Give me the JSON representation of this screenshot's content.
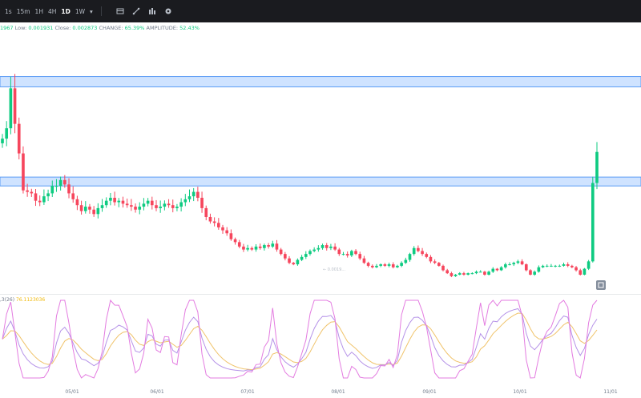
{
  "toolbar": {
    "timeframes": [
      "1s",
      "15m",
      "1H",
      "4H",
      "1D",
      "1W"
    ],
    "active_timeframe": "1D",
    "dropdown_icon": "chevron-down-icon",
    "icons": [
      "candlestick-icon",
      "drawing-icon",
      "indicators-icon",
      "settings-icon"
    ]
  },
  "ohlc": {
    "high_fragment": "1967",
    "low_label": "Low:",
    "low": "0.001931",
    "close_label": "Close:",
    "close": "0.002873",
    "change_label": "CHANGE:",
    "change": "65.39%",
    "amplitude_label": "AMPLITUDE:",
    "amplitude": "52.43%"
  },
  "indicator": {
    "label_fragment": ",3(26)",
    "value": "76.1123036"
  },
  "x_axis": [
    "05/01",
    "06/01",
    "07/01",
    "08/01",
    "09/01",
    "10/01",
    "11/01"
  ],
  "low_marker": "← 0.0019…",
  "colors": {
    "up": "#0ecb81",
    "down": "#f6465d",
    "zone": "#cfe3ff",
    "zone_border": "#5b9cf5",
    "k": "#e37be0",
    "d": "#b592e8",
    "j": "#f0c36a",
    "toolbar": "#1a1b1f"
  },
  "chart_data": {
    "type": "candlestick",
    "zones": [
      {
        "from": 0.014,
        "to": 0.0147
      },
      {
        "from": 0.0073,
        "to": 0.0079
      }
    ],
    "ylim": [
      0,
      0.0176
    ],
    "candles_close": [
      0.0105,
      0.0112,
      0.0139,
      0.0115,
      0.0095,
      0.007,
      0.0069,
      0.0068,
      0.0063,
      0.0062,
      0.0066,
      0.0068,
      0.0073,
      0.0073,
      0.0077,
      0.0074,
      0.0068,
      0.0064,
      0.006,
      0.0056,
      0.0059,
      0.0057,
      0.0054,
      0.0058,
      0.006,
      0.0063,
      0.0065,
      0.0062,
      0.0063,
      0.0061,
      0.006,
      0.0059,
      0.0057,
      0.0059,
      0.0061,
      0.0063,
      0.006,
      0.0058,
      0.0059,
      0.0061,
      0.006,
      0.0058,
      0.0059,
      0.0062,
      0.0064,
      0.0066,
      0.0069,
      0.0065,
      0.0058,
      0.0052,
      0.0049,
      0.0048,
      0.0045,
      0.0043,
      0.0041,
      0.0037,
      0.0035,
      0.0032,
      0.003,
      0.0031,
      0.003,
      0.0032,
      0.0031,
      0.0033,
      0.0032,
      0.0034,
      0.003,
      0.0027,
      0.0024,
      0.0021,
      0.002,
      0.0023,
      0.0025,
      0.0027,
      0.0029,
      0.003,
      0.0031,
      0.0033,
      0.0031,
      0.0032,
      0.003,
      0.0027,
      0.0027,
      0.0026,
      0.0029,
      0.0027,
      0.0024,
      0.0021,
      0.0019,
      0.0018,
      0.0019,
      0.002,
      0.0019,
      0.002,
      0.0018,
      0.0019,
      0.0021,
      0.0023,
      0.0027,
      0.0031,
      0.0029,
      0.0027,
      0.0025,
      0.0022,
      0.0021,
      0.0019,
      0.0016,
      0.0014,
      0.0012,
      0.0013,
      0.0014,
      0.0013,
      0.0014,
      0.0014,
      0.0015,
      0.0015,
      0.0013,
      0.0015,
      0.0017,
      0.0016,
      0.0018,
      0.002,
      0.002,
      0.0021,
      0.0022,
      0.002,
      0.0016,
      0.0013,
      0.0015,
      0.0018,
      0.0019,
      0.0019,
      0.0019,
      0.0019,
      0.0019,
      0.002,
      0.0019,
      0.0018,
      0.0016,
      0.0013,
      0.0017,
      0.0022,
      0.0075,
      0.0096
    ]
  }
}
